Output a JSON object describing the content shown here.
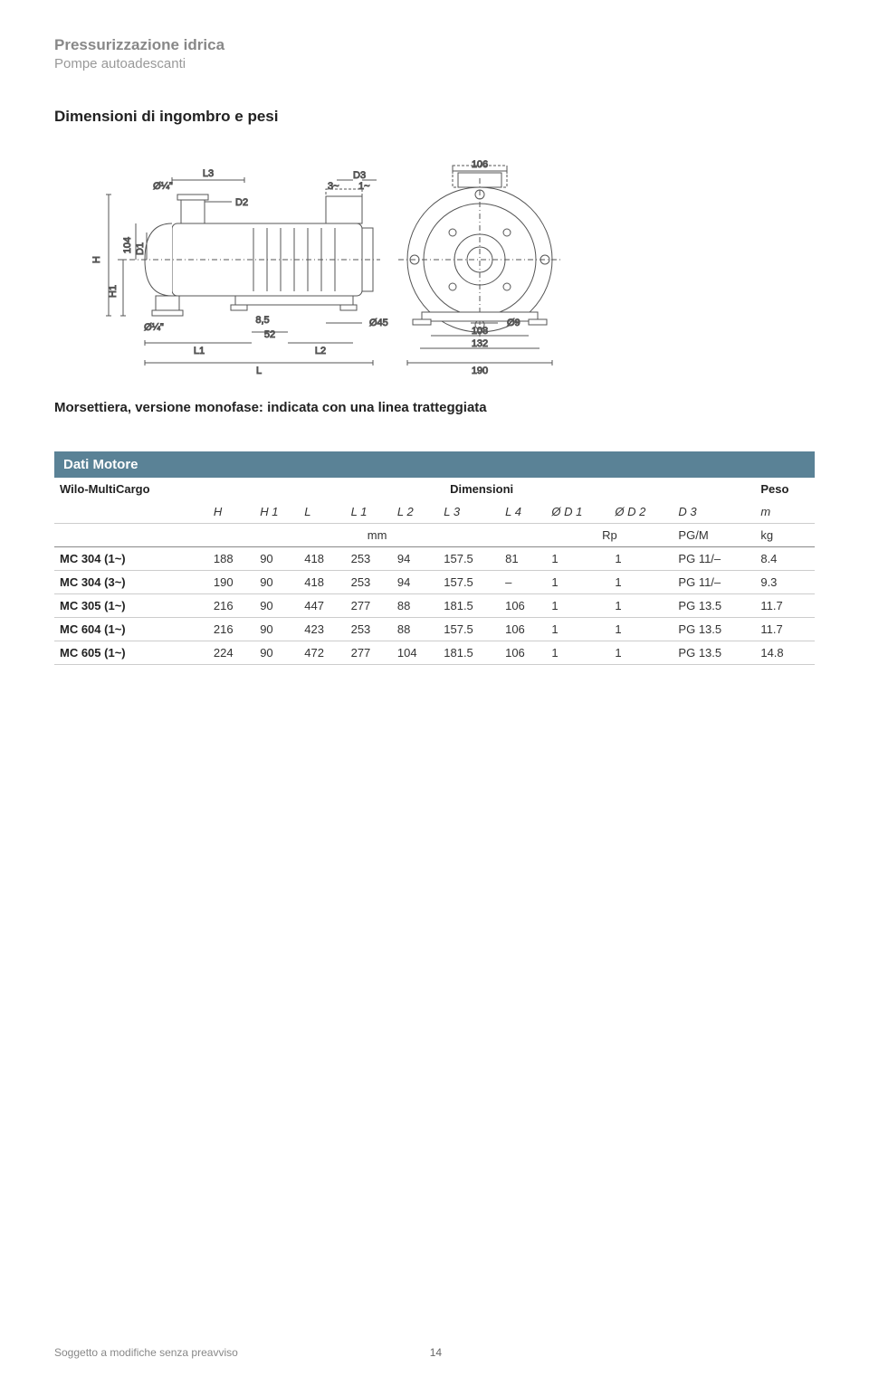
{
  "header": {
    "title": "Pressurizzazione idrica",
    "subtitle": "Pompe autoadescanti"
  },
  "section_title": "Dimensioni di ingombro e pesi",
  "diagram": {
    "labels": {
      "L3": "L3",
      "D2": "D2",
      "D3": "D3",
      "three_tilde": "3~",
      "one_tilde": "1~",
      "phi_quarter_top": "Ø¼\"",
      "phi_quarter_left": "Ø¼\"",
      "H": "H",
      "H1": "H1",
      "D1": "D1",
      "v104": "104",
      "L1": "L1",
      "L2": "L2",
      "L": "L",
      "v8_5": "8,5",
      "v52": "52",
      "phi45": "Ø45",
      "v106": "106",
      "phi9": "Ø9",
      "v108": "108",
      "v132": "132",
      "v190": "190"
    },
    "stroke": "#555555",
    "fill": "#ffffff",
    "fontsize": 11
  },
  "caption": "Morsettiera, versione monofase: indicata con una linea tratteggiata",
  "table": {
    "title_bar": "Dati Motore",
    "header1": [
      "Wilo-MultiCargo",
      "Dimensioni",
      "Peso"
    ],
    "header2": [
      "",
      "H",
      "H 1",
      "L",
      "L 1",
      "L 2",
      "L 3",
      "L 4",
      "Ø D 1",
      "Ø D 2",
      "D 3",
      "m"
    ],
    "header3": [
      "",
      "mm",
      "Rp",
      "PG/M",
      "kg"
    ],
    "rows": [
      [
        "MC 304 (1~)",
        "188",
        "90",
        "418",
        "253",
        "94",
        "157.5",
        "81",
        "1",
        "1",
        "PG 11/–",
        "8.4"
      ],
      [
        "MC 304 (3~)",
        "190",
        "90",
        "418",
        "253",
        "94",
        "157.5",
        "–",
        "1",
        "1",
        "PG 11/–",
        "9.3"
      ],
      [
        "MC 305 (1~)",
        "216",
        "90",
        "447",
        "277",
        "88",
        "181.5",
        "106",
        "1",
        "1",
        "PG 13.5",
        "11.7"
      ],
      [
        "MC 604 (1~)",
        "216",
        "90",
        "423",
        "253",
        "88",
        "157.5",
        "106",
        "1",
        "1",
        "PG 13.5",
        "11.7"
      ],
      [
        "MC 605 (1~)",
        "224",
        "90",
        "472",
        "277",
        "104",
        "181.5",
        "106",
        "1",
        "1",
        "PG 13.5",
        "14.8"
      ]
    ]
  },
  "footer": {
    "left": "Soggetto a modifiche senza preavviso",
    "page": "14"
  }
}
